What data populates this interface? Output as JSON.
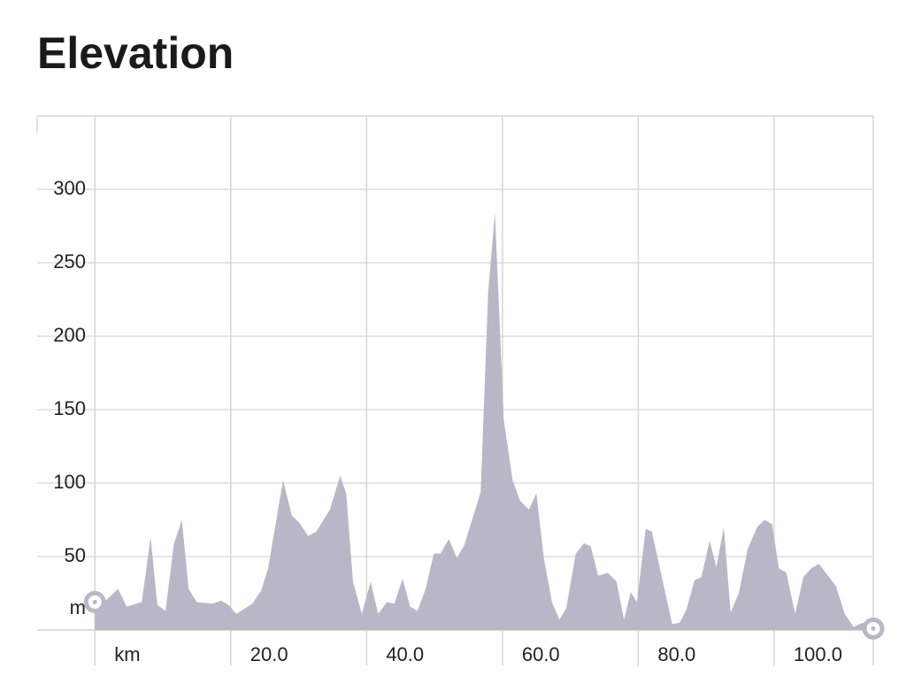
{
  "chart_data": {
    "type": "area",
    "title": "Elevation",
    "color": "#b9b7c7",
    "grid": true,
    "xlim": [
      -8.5,
      114.6
    ],
    "ylim": [
      0,
      350
    ],
    "xticks": [
      {
        "value": 0,
        "label": "km"
      },
      {
        "value": 20,
        "label": "20.0"
      },
      {
        "value": 40,
        "label": "40.0"
      },
      {
        "value": 60,
        "label": "60.0"
      },
      {
        "value": 80,
        "label": "80.0"
      },
      {
        "value": 100,
        "label": "100.0"
      }
    ],
    "yticks": [
      {
        "value": 0,
        "label": "m"
      },
      50,
      100,
      150,
      200,
      250,
      300
    ],
    "x": [
      0,
      3.4,
      4.7,
      6.9,
      8.2,
      9.2,
      10.4,
      11.6,
      12.8,
      13.8,
      15,
      17.3,
      18.6,
      19.7,
      20.8,
      23.2,
      24.5,
      25.5,
      27.7,
      29,
      30.1,
      31.4,
      32.6,
      34.6,
      36.1,
      37,
      38,
      39.3,
      40.6,
      41.7,
      43,
      44.1,
      45.3,
      46.4,
      47.5,
      48.7,
      49.9,
      50.9,
      52.1,
      53.3,
      54.4,
      56.8,
      57.9,
      58.9,
      60.2,
      61.5,
      62.6,
      63.9,
      65,
      66.1,
      67.3,
      68.4,
      69.4,
      70.8,
      72,
      73,
      74.1,
      75.5,
      76.8,
      77.9,
      78.9,
      79.8,
      81.1,
      82,
      85,
      86.1,
      87.1,
      88.3,
      89.3,
      90.5,
      91.5,
      92.6,
      93.6,
      94.8,
      96.1,
      97.5,
      98.6,
      99.7,
      100.7,
      101.8,
      103.1,
      104.3,
      105.5,
      106.6,
      109.1,
      110.4,
      111.7,
      113,
      114.6
    ],
    "values": [
      13,
      28,
      16,
      19,
      63,
      17,
      13,
      58,
      75,
      28,
      19,
      18,
      20,
      17,
      11,
      18,
      27,
      42,
      102,
      78,
      73,
      64,
      67,
      82,
      105,
      93,
      33,
      11,
      33,
      11,
      19,
      18,
      35,
      16,
      13,
      28,
      52,
      52,
      62,
      49,
      58,
      94,
      230,
      284,
      143,
      102,
      88,
      82,
      93,
      49,
      19,
      7,
      15,
      52,
      59,
      57,
      37,
      39,
      33,
      7,
      26,
      19,
      69,
      67,
      4,
      5,
      14,
      34,
      36,
      61,
      43,
      70,
      12,
      25,
      55,
      70,
      75,
      72,
      42,
      39,
      11,
      36,
      42,
      45,
      30,
      11,
      2,
      5,
      1
    ]
  }
}
